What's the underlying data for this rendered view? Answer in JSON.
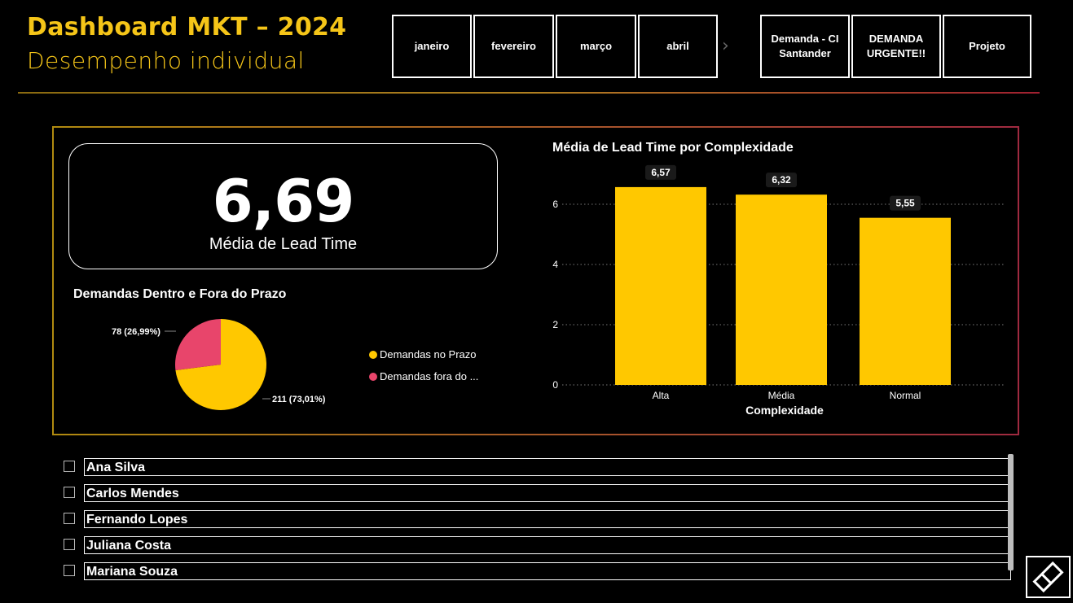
{
  "header": {
    "title": "Dashboard MKT – 2024",
    "subtitle": "Desempenho individual"
  },
  "nav": {
    "months": [
      "janeiro",
      "fevereiro",
      "março",
      "abril"
    ],
    "types": [
      "Demanda - CI Santander",
      "DEMANDA URGENTE!!",
      "Projeto"
    ],
    "separator": "›"
  },
  "kpi": {
    "value": "6,69",
    "label": "Média de Lead Time"
  },
  "pie": {
    "title": "Demandas Dentro e Fora do Prazo",
    "label_prazo": "211 (73,01%)",
    "label_fora": "78 (26,99%)",
    "legend_prazo": "Demandas no Prazo",
    "legend_fora": "Demandas fora do ..."
  },
  "bar": {
    "title": "Média de Lead Time por Complexidade",
    "xlabel": "Complexidade"
  },
  "chart_data": [
    {
      "type": "pie",
      "title": "Demandas Dentro e Fora do Prazo",
      "categories": [
        "Demandas no Prazo",
        "Demandas fora do ..."
      ],
      "values": [
        211,
        78
      ],
      "percents": [
        73.01,
        26.99
      ],
      "data_labels": [
        "211 (73,01%)",
        "78 (26,99%)"
      ],
      "colors": [
        "#ffc800",
        "#e8456b"
      ],
      "legend_position": "right"
    },
    {
      "type": "bar",
      "title": "Média de Lead Time por Complexidade",
      "categories": [
        "Alta",
        "Média",
        "Normal"
      ],
      "values": [
        6.57,
        6.32,
        5.55
      ],
      "data_labels": [
        "6,57",
        "6,32",
        "5,55"
      ],
      "xlabel": "Complexidade",
      "ylabel": "",
      "yticks": [
        "0",
        "2",
        "4",
        "6"
      ],
      "ylim": [
        0,
        7
      ],
      "grid": true,
      "color": "#ffc800"
    }
  ],
  "slicer": {
    "items": [
      "Ana Silva",
      "Carlos Mendes",
      "Fernando Lopes",
      "Juliana Costa",
      "Mariana Souza"
    ]
  },
  "colors": {
    "accent": "#f5c518",
    "bar": "#ffc800",
    "pink": "#e8456b"
  },
  "icons": {
    "corner": "powerbi-focus-icon"
  }
}
